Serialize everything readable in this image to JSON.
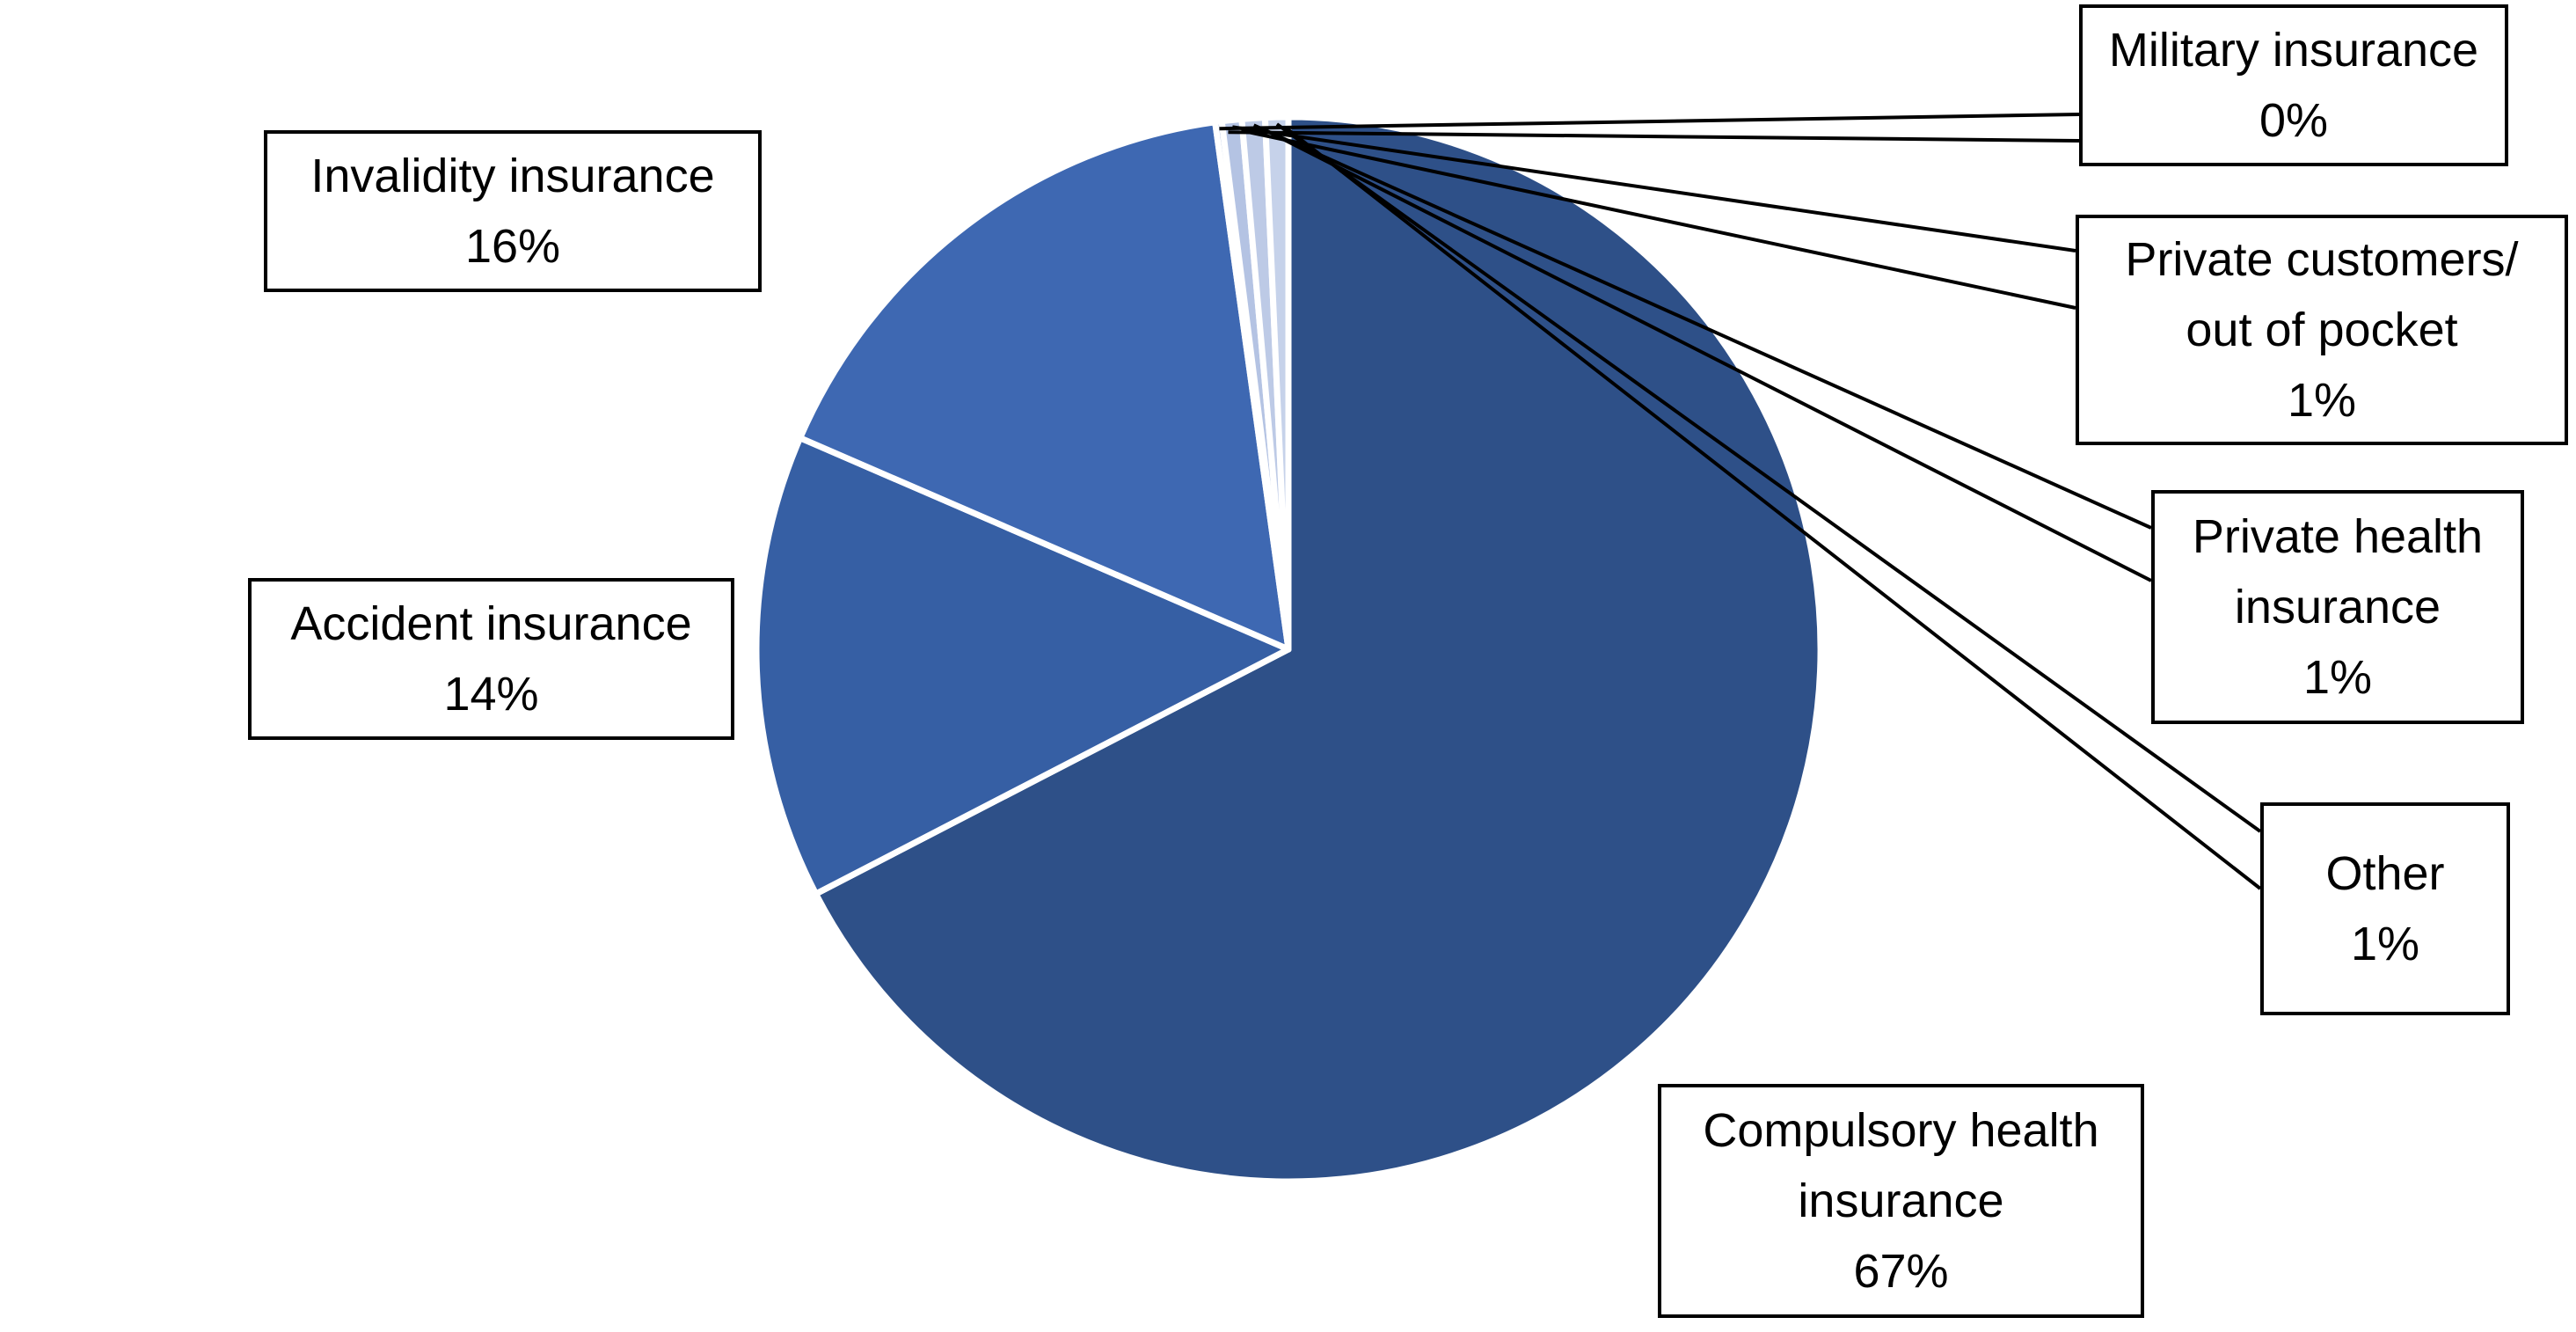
{
  "chart_data": {
    "type": "pie",
    "start_angle_deg": 0,
    "direction": "clockwise",
    "slices": [
      {
        "name": "Compulsory health insurance",
        "label_lines": [
          "Compulsory health",
          "insurance"
        ],
        "percent_label": "67%",
        "value": 67.4,
        "color": "#2e5088"
      },
      {
        "name": "Accident insurance",
        "label_lines": [
          "Accident insurance"
        ],
        "percent_label": "14%",
        "value": 14.1,
        "color": "#365fa4"
      },
      {
        "name": "Invalidity insurance",
        "label_lines": [
          "Invalidity insurance"
        ],
        "percent_label": "16%",
        "value": 16.3,
        "color": "#3e68b2"
      },
      {
        "name": "Military insurance",
        "label_lines": [
          "Military insurance"
        ],
        "percent_label": "0%",
        "value": 0.2,
        "color": "#a9bade"
      },
      {
        "name": "Private customers/ out of pocket",
        "label_lines": [
          "Private customers/",
          "out of pocket"
        ],
        "percent_label": "1%",
        "value": 0.6,
        "color": "#b4c3e3"
      },
      {
        "name": "Private health insurance",
        "label_lines": [
          "Private health",
          "insurance"
        ],
        "percent_label": "1%",
        "value": 0.7,
        "color": "#bdcae6"
      },
      {
        "name": "Other",
        "label_lines": [
          "Other"
        ],
        "percent_label": "1%",
        "value": 0.7,
        "color": "#c6d2ea"
      }
    ]
  }
}
